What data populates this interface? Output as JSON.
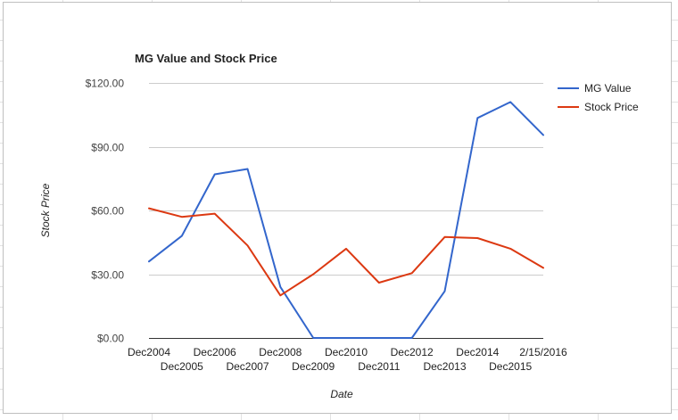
{
  "chart_data": {
    "type": "line",
    "title": "MG Value and Stock Price",
    "xlabel": "Date",
    "ylabel": "Stock Price",
    "categories": [
      "Dec2004",
      "Dec2005",
      "Dec2006",
      "Dec2007",
      "Dec2008",
      "Dec2009",
      "Dec2010",
      "Dec2011",
      "Dec2012",
      "Dec2013",
      "Dec2014",
      "Dec2015",
      "2/15/2016"
    ],
    "y_ticks": [
      {
        "value": 0,
        "label": "$0.00"
      },
      {
        "value": 30,
        "label": "$30.00"
      },
      {
        "value": 60,
        "label": "$60.00"
      },
      {
        "value": 90,
        "label": "$90.00"
      },
      {
        "value": 120,
        "label": "$120.00"
      }
    ],
    "ylim": [
      0,
      120
    ],
    "grid": true,
    "legend_position": "right",
    "series": [
      {
        "name": "MG Value",
        "color": "#3366cc",
        "values": [
          36,
          48,
          77,
          79.5,
          24,
          0,
          0,
          0,
          0,
          22,
          103.5,
          111,
          95.5
        ]
      },
      {
        "name": "Stock Price",
        "color": "#dc3912",
        "values": [
          61,
          57,
          58.5,
          43.5,
          20,
          30,
          42,
          26,
          30.5,
          47.5,
          47,
          42,
          33
        ]
      }
    ]
  }
}
